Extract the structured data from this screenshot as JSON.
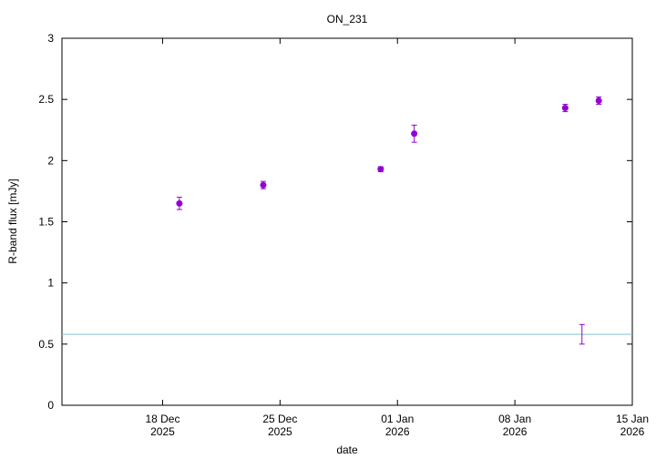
{
  "chart_data": {
    "type": "errorbar",
    "title": "ON_231",
    "x_label": "date",
    "y_label": "R-band flux [mJy]",
    "x": [
      "2025-12-19",
      "2025-12-24",
      "2025-12-31",
      "2026-01-02",
      "2026-01-11",
      "2026-01-13"
    ],
    "values": [
      1.65,
      1.8,
      1.93,
      2.22,
      2.43,
      2.49
    ],
    "errors": [
      0.05,
      0.03,
      0.02,
      0.07,
      0.03,
      0.03
    ],
    "color": "#9400d3",
    "errorbar_only": {
      "x": "2026-01-12",
      "value": 0.58,
      "error": 0.08
    },
    "hline": 0.58,
    "hline_color": "#7fc3c9",
    "xlim": [
      "2025-12-12",
      "2026-01-15"
    ],
    "xticks": [
      {
        "value": "2025-12-18",
        "label": "18 Dec\n2025"
      },
      {
        "value": "2025-12-25",
        "label": "25 Dec\n2025"
      },
      {
        "value": "2026-01-01",
        "label": "01 Jan\n2026"
      },
      {
        "value": "2026-01-08",
        "label": "08 Jan\n2026"
      },
      {
        "value": "2026-01-15",
        "label": "15 Jan\n2026"
      }
    ],
    "ylim": [
      0,
      3
    ],
    "yticks": [
      0,
      0.5,
      1,
      1.5,
      2,
      2.5,
      3
    ],
    "grid": false
  }
}
